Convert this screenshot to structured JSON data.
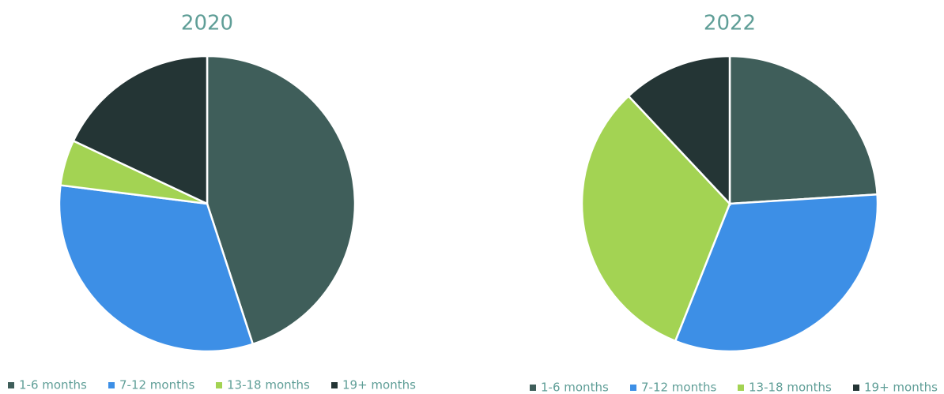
{
  "chart_data": [
    {
      "type": "pie",
      "title": "2020",
      "categories": [
        "1-6 months",
        "7-12 months",
        "13-18 months",
        "19+ months"
      ],
      "values": [
        45,
        32,
        5,
        18
      ],
      "colors": [
        "#3f5e5a",
        "#3d8fe6",
        "#a3d353",
        "#243535"
      ],
      "legend": "bottom"
    },
    {
      "type": "pie",
      "title": "2022",
      "categories": [
        "1-6 months",
        "7-12 months",
        "13-18 months",
        "19+ months"
      ],
      "values": [
        24,
        32,
        32,
        12
      ],
      "colors": [
        "#3f5e5a",
        "#3d8fe6",
        "#a3d353",
        "#243535"
      ],
      "legend": "bottom"
    }
  ]
}
